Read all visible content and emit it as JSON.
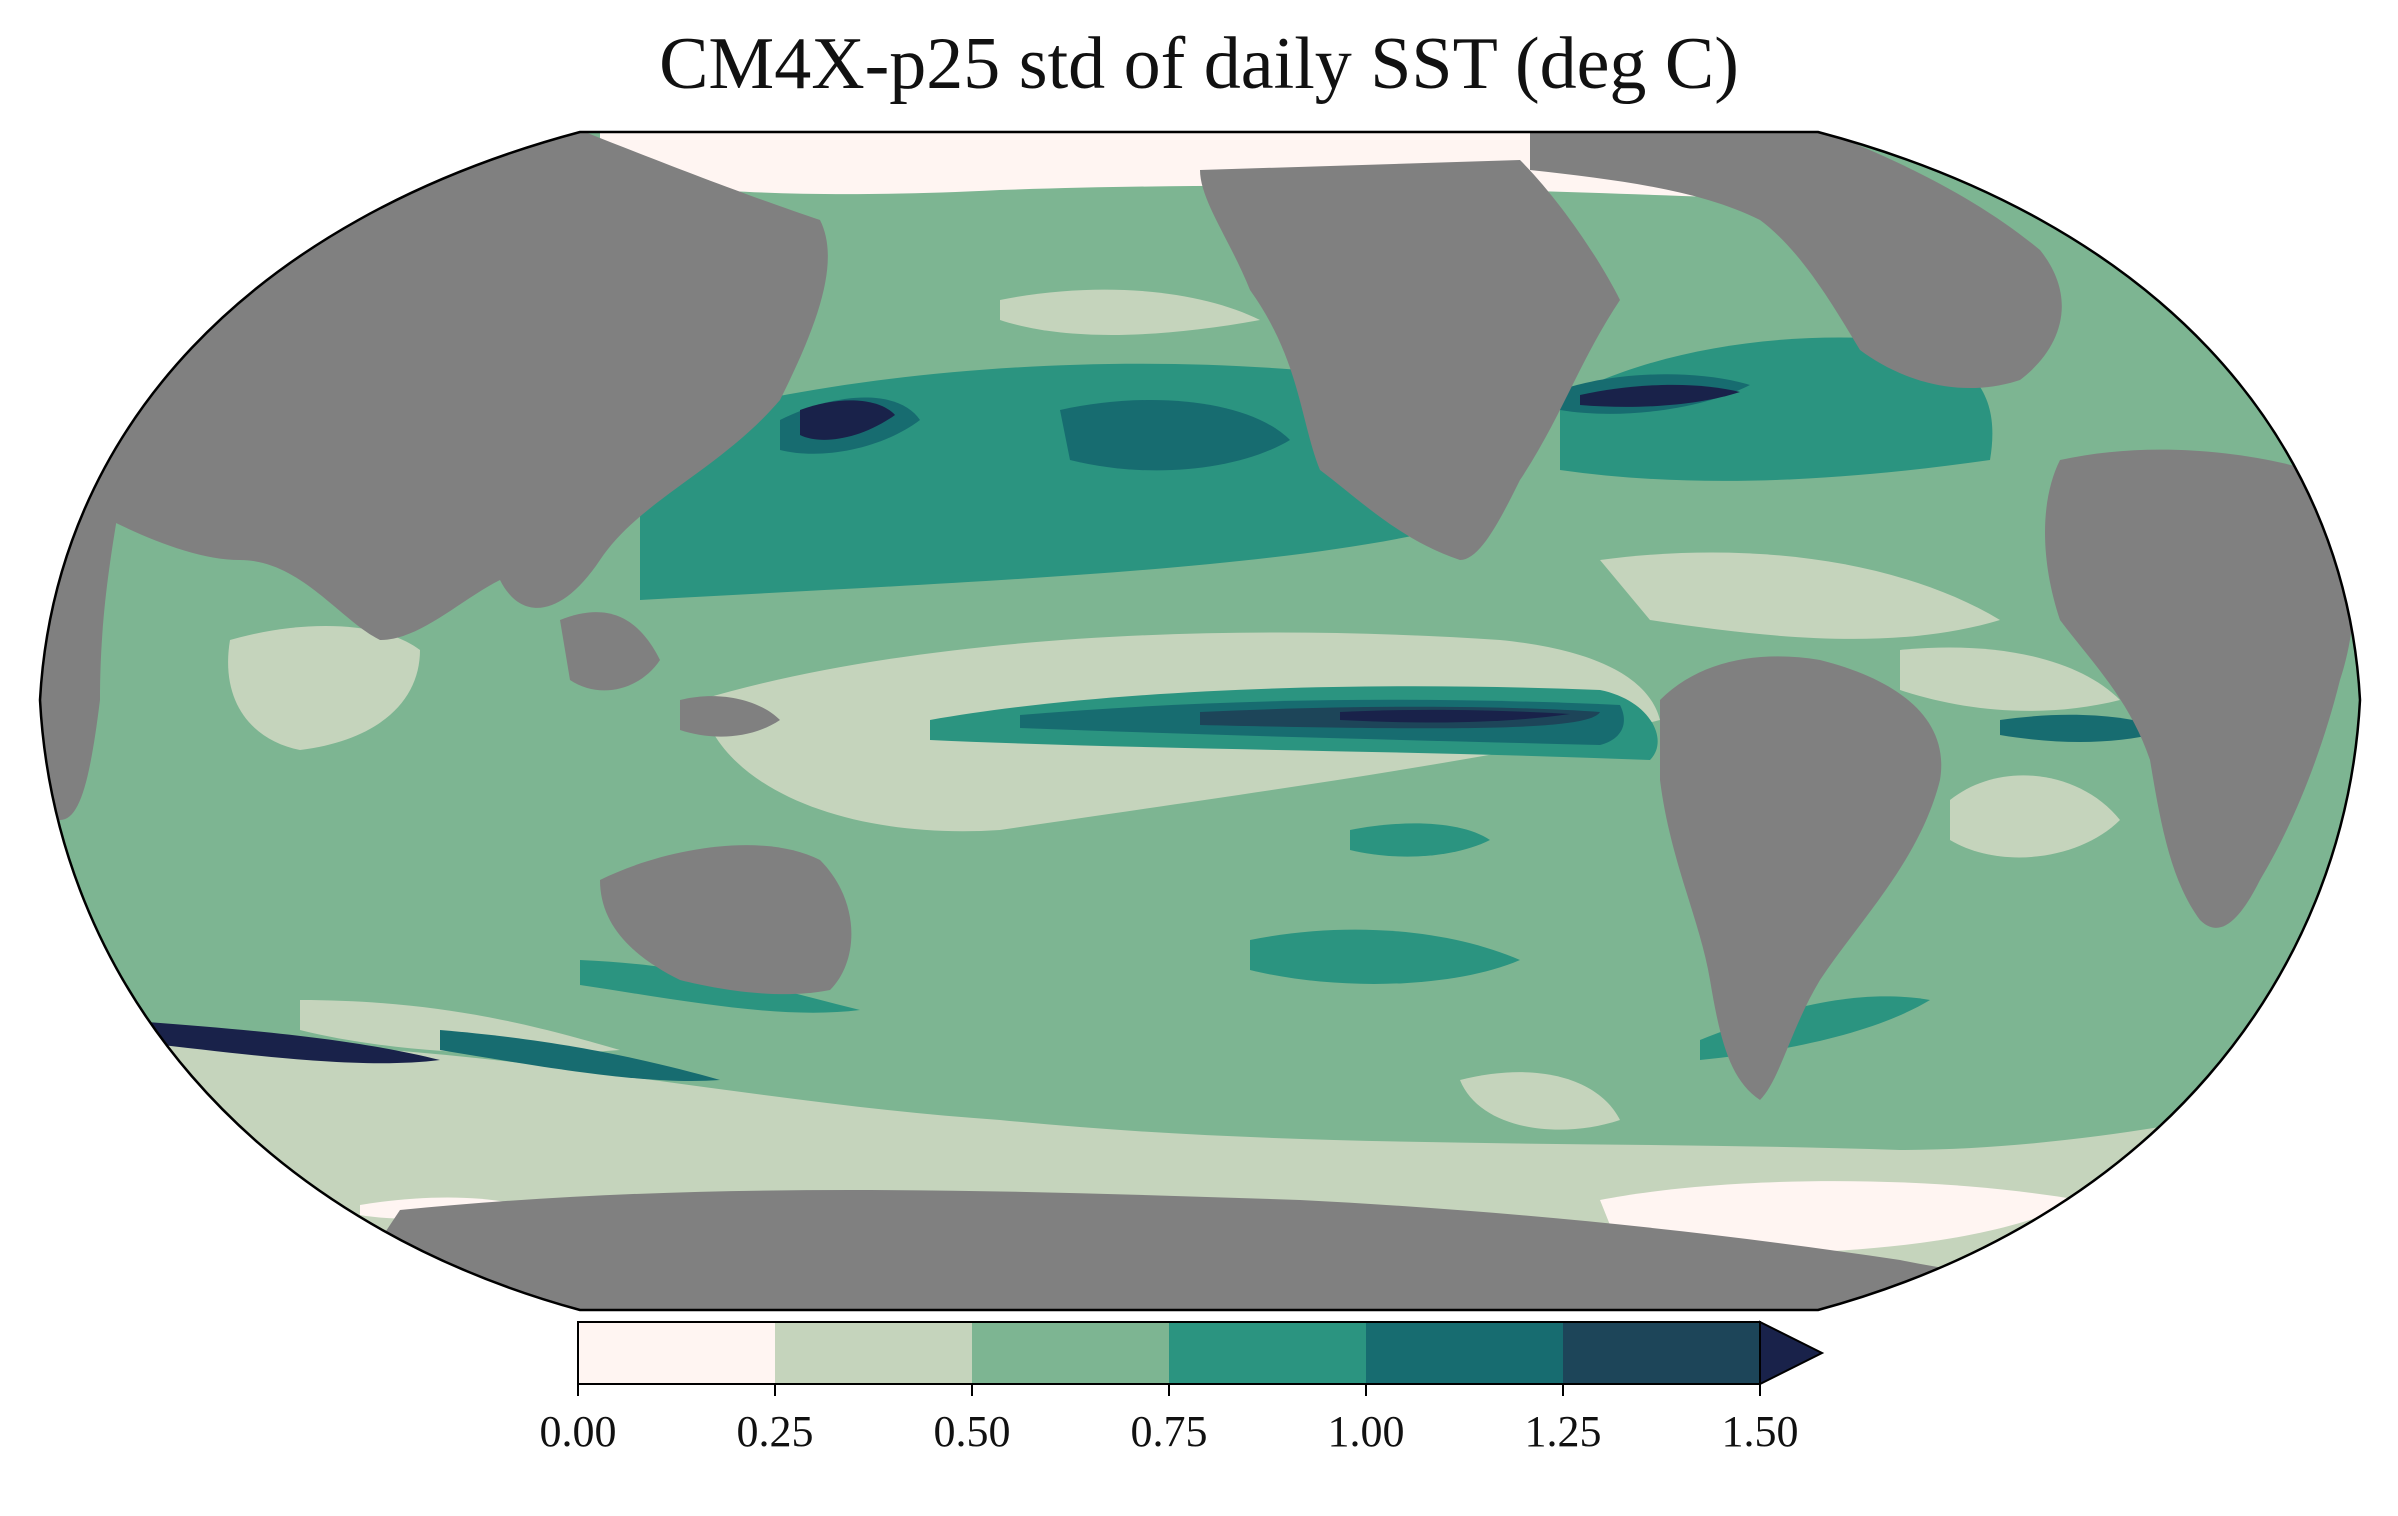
{
  "title": "CM4X-p25 std of daily SST (deg C)",
  "colors": {
    "land": "#808080",
    "levels": [
      "#fff5f2",
      "#c5d4bc",
      "#7db592",
      "#2b9480",
      "#176c70",
      "#1d4559",
      "#19224a"
    ]
  },
  "colorbar": {
    "ticks": [
      "0.00",
      "0.25",
      "0.50",
      "0.75",
      "1.00",
      "1.25",
      "1.50"
    ],
    "extend": "max"
  },
  "chart_data": {
    "type": "heatmap",
    "variable": "std of daily SST",
    "units": "deg C",
    "projection": "Robinson",
    "levels": [
      0.0,
      0.25,
      0.5,
      0.75,
      1.0,
      1.25,
      1.5
    ],
    "colorbar_extend": "max"
  }
}
